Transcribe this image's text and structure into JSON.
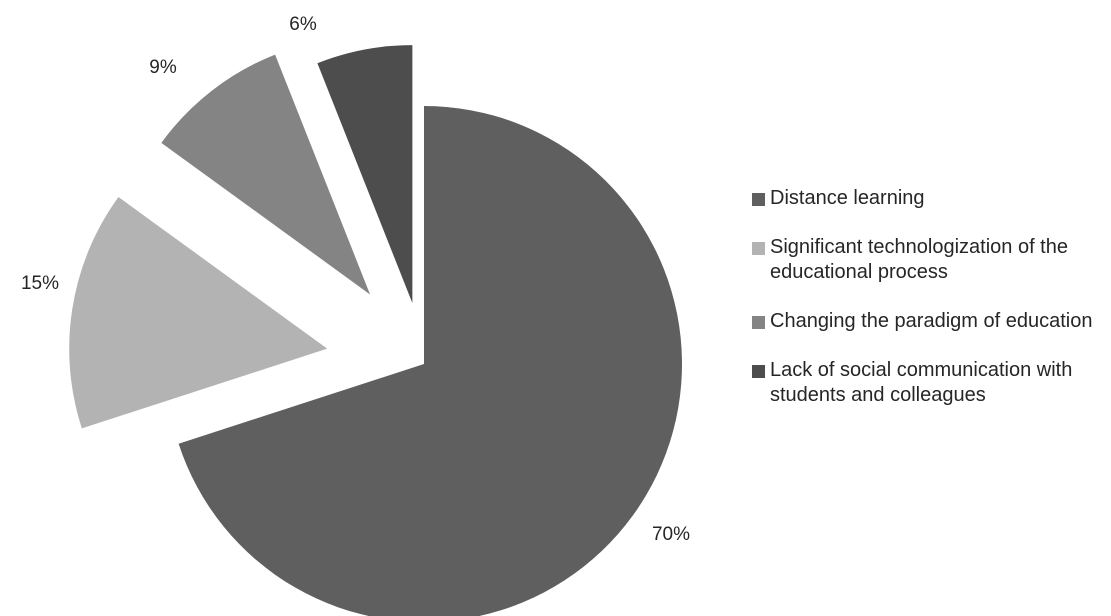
{
  "chart_data": {
    "type": "pie",
    "title": "",
    "legend_position": "right",
    "slices": [
      {
        "label": "Distance learning",
        "value": 70,
        "display": "70%",
        "color": "#5f5f5f"
      },
      {
        "label": "Significant technologization of the educational process",
        "value": 15,
        "display": "15%",
        "color": "#b3b3b3"
      },
      {
        "label": "Changing the paradigm of education",
        "value": 9,
        "display": "9%",
        "color": "#848484"
      },
      {
        "label": "Lack of social communication with students and colleagues",
        "value": 6,
        "display": "6%",
        "color": "#4d4d4d"
      }
    ]
  }
}
